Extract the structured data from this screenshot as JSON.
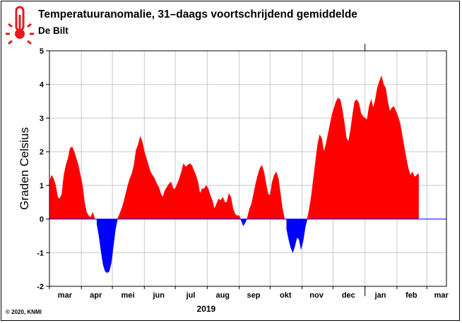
{
  "header": {
    "title": "Temperatuuranomalie, 31–daags voortschrijdend gemiddelde",
    "subtitle": "De Bilt",
    "logo_icon": "thermometer-icon"
  },
  "footer": {
    "copyright": "© 2020, KNMI"
  },
  "colors": {
    "positive": "#ff0000",
    "negative": "#0000ff",
    "grid": "#c8c8c8",
    "zero_line": "#0000ff",
    "logo": "#e41a1c"
  },
  "chart_data": {
    "type": "area",
    "ylabel": "Graden Celsius",
    "xlabel": "2019",
    "ylim": [
      -2,
      5
    ],
    "yticks": [
      -2,
      -1,
      0,
      1,
      2,
      3,
      4,
      5
    ],
    "grid": true,
    "x_range": [
      "2019-03-01",
      "2020-03-20"
    ],
    "month_ticks": [
      {
        "label": "mar",
        "date": "2019-03-16"
      },
      {
        "label": "apr",
        "date": "2019-04-15"
      },
      {
        "label": "mei",
        "date": "2019-05-16"
      },
      {
        "label": "jun",
        "date": "2019-06-15"
      },
      {
        "label": "jul",
        "date": "2019-07-16"
      },
      {
        "label": "aug",
        "date": "2019-08-16"
      },
      {
        "label": "sep",
        "date": "2019-09-15"
      },
      {
        "label": "okt",
        "date": "2019-10-16"
      },
      {
        "label": "nov",
        "date": "2019-11-15"
      },
      {
        "label": "dec",
        "date": "2019-12-16"
      },
      {
        "label": "jan",
        "date": "2020-01-16"
      },
      {
        "label": "feb",
        "date": "2020-02-15"
      },
      {
        "label": "mar",
        "date": "2020-03-15"
      }
    ],
    "year_boundary": "2020-01-01",
    "series": [
      {
        "points": [
          [
            "2019-03-01",
            1.1
          ],
          [
            "2019-03-03",
            1.3
          ],
          [
            "2019-03-05",
            1.2
          ],
          [
            "2019-03-07",
            1.0
          ],
          [
            "2019-03-09",
            0.65
          ],
          [
            "2019-03-11",
            0.6
          ],
          [
            "2019-03-13",
            0.75
          ],
          [
            "2019-03-15",
            1.3
          ],
          [
            "2019-03-17",
            1.6
          ],
          [
            "2019-03-19",
            1.8
          ],
          [
            "2019-03-21",
            2.1
          ],
          [
            "2019-03-23",
            2.15
          ],
          [
            "2019-03-25",
            2.0
          ],
          [
            "2019-03-27",
            1.8
          ],
          [
            "2019-03-29",
            1.6
          ],
          [
            "2019-03-31",
            1.3
          ],
          [
            "2019-04-02",
            1.0
          ],
          [
            "2019-04-04",
            0.5
          ],
          [
            "2019-04-06",
            0.2
          ],
          [
            "2019-04-08",
            0.1
          ],
          [
            "2019-04-10",
            0.05
          ],
          [
            "2019-04-12",
            0.2
          ],
          [
            "2019-04-14",
            0.0
          ],
          [
            "2019-04-16",
            -0.15
          ],
          [
            "2019-04-18",
            -0.5
          ],
          [
            "2019-04-20",
            -0.95
          ],
          [
            "2019-04-22",
            -1.35
          ],
          [
            "2019-04-24",
            -1.55
          ],
          [
            "2019-04-26",
            -1.6
          ],
          [
            "2019-04-28",
            -1.55
          ],
          [
            "2019-04-30",
            -1.3
          ],
          [
            "2019-05-02",
            -0.8
          ],
          [
            "2019-05-04",
            -0.3
          ],
          [
            "2019-05-06",
            0.0
          ],
          [
            "2019-05-08",
            0.15
          ],
          [
            "2019-05-10",
            0.3
          ],
          [
            "2019-05-12",
            0.5
          ],
          [
            "2019-05-14",
            0.75
          ],
          [
            "2019-05-16",
            1.0
          ],
          [
            "2019-05-18",
            1.2
          ],
          [
            "2019-05-20",
            1.35
          ],
          [
            "2019-05-22",
            1.6
          ],
          [
            "2019-05-24",
            2.05
          ],
          [
            "2019-05-26",
            2.2
          ],
          [
            "2019-05-28",
            2.45
          ],
          [
            "2019-05-30",
            2.3
          ],
          [
            "2019-06-01",
            2.0
          ],
          [
            "2019-06-03",
            1.8
          ],
          [
            "2019-06-05",
            1.6
          ],
          [
            "2019-06-07",
            1.4
          ],
          [
            "2019-06-09",
            1.3
          ],
          [
            "2019-06-11",
            1.2
          ],
          [
            "2019-06-13",
            1.05
          ],
          [
            "2019-06-15",
            0.95
          ],
          [
            "2019-06-17",
            0.75
          ],
          [
            "2019-06-19",
            0.65
          ],
          [
            "2019-06-21",
            0.85
          ],
          [
            "2019-06-23",
            0.95
          ],
          [
            "2019-06-25",
            1.05
          ],
          [
            "2019-06-27",
            1.1
          ],
          [
            "2019-06-29",
            0.9
          ],
          [
            "2019-07-01",
            0.9
          ],
          [
            "2019-07-03",
            1.05
          ],
          [
            "2019-07-05",
            1.2
          ],
          [
            "2019-07-07",
            1.4
          ],
          [
            "2019-07-09",
            1.65
          ],
          [
            "2019-07-11",
            1.55
          ],
          [
            "2019-07-13",
            1.6
          ],
          [
            "2019-07-15",
            1.65
          ],
          [
            "2019-07-17",
            1.6
          ],
          [
            "2019-07-19",
            1.45
          ],
          [
            "2019-07-21",
            1.3
          ],
          [
            "2019-07-23",
            1.1
          ],
          [
            "2019-07-25",
            0.75
          ],
          [
            "2019-07-27",
            0.9
          ],
          [
            "2019-07-29",
            0.9
          ],
          [
            "2019-07-31",
            1.0
          ],
          [
            "2019-08-02",
            0.9
          ],
          [
            "2019-08-04",
            0.7
          ],
          [
            "2019-08-06",
            0.55
          ],
          [
            "2019-08-08",
            0.3
          ],
          [
            "2019-08-10",
            0.45
          ],
          [
            "2019-08-12",
            0.6
          ],
          [
            "2019-08-14",
            0.55
          ],
          [
            "2019-08-16",
            0.65
          ],
          [
            "2019-08-18",
            0.5
          ],
          [
            "2019-08-20",
            0.5
          ],
          [
            "2019-08-22",
            0.75
          ],
          [
            "2019-08-24",
            0.65
          ],
          [
            "2019-08-26",
            0.3
          ],
          [
            "2019-08-28",
            0.15
          ],
          [
            "2019-08-30",
            0.1
          ],
          [
            "2019-09-01",
            0.1
          ],
          [
            "2019-09-03",
            -0.05
          ],
          [
            "2019-09-05",
            -0.2
          ],
          [
            "2019-09-07",
            -0.1
          ],
          [
            "2019-09-09",
            0.05
          ],
          [
            "2019-09-11",
            0.3
          ],
          [
            "2019-09-13",
            0.45
          ],
          [
            "2019-09-15",
            0.75
          ],
          [
            "2019-09-17",
            1.05
          ],
          [
            "2019-09-19",
            1.3
          ],
          [
            "2019-09-21",
            1.5
          ],
          [
            "2019-09-23",
            1.6
          ],
          [
            "2019-09-25",
            1.4
          ],
          [
            "2019-09-27",
            1.05
          ],
          [
            "2019-09-29",
            0.75
          ],
          [
            "2019-10-01",
            0.7
          ],
          [
            "2019-10-03",
            1.1
          ],
          [
            "2019-10-05",
            1.3
          ],
          [
            "2019-10-07",
            1.4
          ],
          [
            "2019-10-09",
            1.2
          ],
          [
            "2019-10-11",
            0.75
          ],
          [
            "2019-10-13",
            0.3
          ],
          [
            "2019-10-15",
            0.0
          ],
          [
            "2019-10-17",
            -0.3
          ],
          [
            "2019-10-19",
            -0.6
          ],
          [
            "2019-10-21",
            -0.85
          ],
          [
            "2019-10-23",
            -1.0
          ],
          [
            "2019-10-25",
            -0.8
          ],
          [
            "2019-10-27",
            -0.55
          ],
          [
            "2019-10-29",
            -0.6
          ],
          [
            "2019-10-31",
            -0.9
          ],
          [
            "2019-11-02",
            -0.65
          ],
          [
            "2019-11-04",
            -0.25
          ],
          [
            "2019-11-06",
            0.0
          ],
          [
            "2019-11-08",
            0.3
          ],
          [
            "2019-11-10",
            0.7
          ],
          [
            "2019-11-12",
            1.2
          ],
          [
            "2019-11-14",
            1.7
          ],
          [
            "2019-11-16",
            2.2
          ],
          [
            "2019-11-18",
            2.5
          ],
          [
            "2019-11-20",
            2.4
          ],
          [
            "2019-11-22",
            2.0
          ],
          [
            "2019-11-24",
            2.2
          ],
          [
            "2019-11-26",
            2.5
          ],
          [
            "2019-11-28",
            2.8
          ],
          [
            "2019-11-30",
            3.1
          ],
          [
            "2019-12-02",
            3.3
          ],
          [
            "2019-12-04",
            3.5
          ],
          [
            "2019-12-06",
            3.6
          ],
          [
            "2019-12-08",
            3.55
          ],
          [
            "2019-12-10",
            3.25
          ],
          [
            "2019-12-12",
            2.85
          ],
          [
            "2019-12-14",
            2.4
          ],
          [
            "2019-12-16",
            2.3
          ],
          [
            "2019-12-18",
            2.65
          ],
          [
            "2019-12-20",
            3.1
          ],
          [
            "2019-12-22",
            3.5
          ],
          [
            "2019-12-24",
            3.55
          ],
          [
            "2019-12-26",
            3.45
          ],
          [
            "2019-12-28",
            3.15
          ],
          [
            "2019-12-30",
            3.05
          ],
          [
            "2020-01-01",
            3.0
          ],
          [
            "2020-01-03",
            2.95
          ],
          [
            "2020-01-05",
            3.35
          ],
          [
            "2020-01-07",
            3.55
          ],
          [
            "2020-01-09",
            3.3
          ],
          [
            "2020-01-11",
            3.55
          ],
          [
            "2020-01-13",
            3.9
          ],
          [
            "2020-01-15",
            4.1
          ],
          [
            "2020-01-17",
            4.25
          ],
          [
            "2020-01-19",
            4.0
          ],
          [
            "2020-01-21",
            3.9
          ],
          [
            "2020-01-23",
            3.5
          ],
          [
            "2020-01-25",
            3.2
          ],
          [
            "2020-01-27",
            3.3
          ],
          [
            "2020-01-29",
            3.35
          ],
          [
            "2020-01-31",
            3.2
          ],
          [
            "2020-02-02",
            3.05
          ],
          [
            "2020-02-04",
            2.85
          ],
          [
            "2020-02-06",
            2.5
          ],
          [
            "2020-02-08",
            2.15
          ],
          [
            "2020-02-10",
            1.8
          ],
          [
            "2020-02-12",
            1.5
          ],
          [
            "2020-02-14",
            1.3
          ],
          [
            "2020-02-16",
            1.4
          ],
          [
            "2020-02-18",
            1.25
          ],
          [
            "2020-02-20",
            1.3
          ],
          [
            "2020-02-22",
            1.35
          ]
        ]
      }
    ]
  }
}
